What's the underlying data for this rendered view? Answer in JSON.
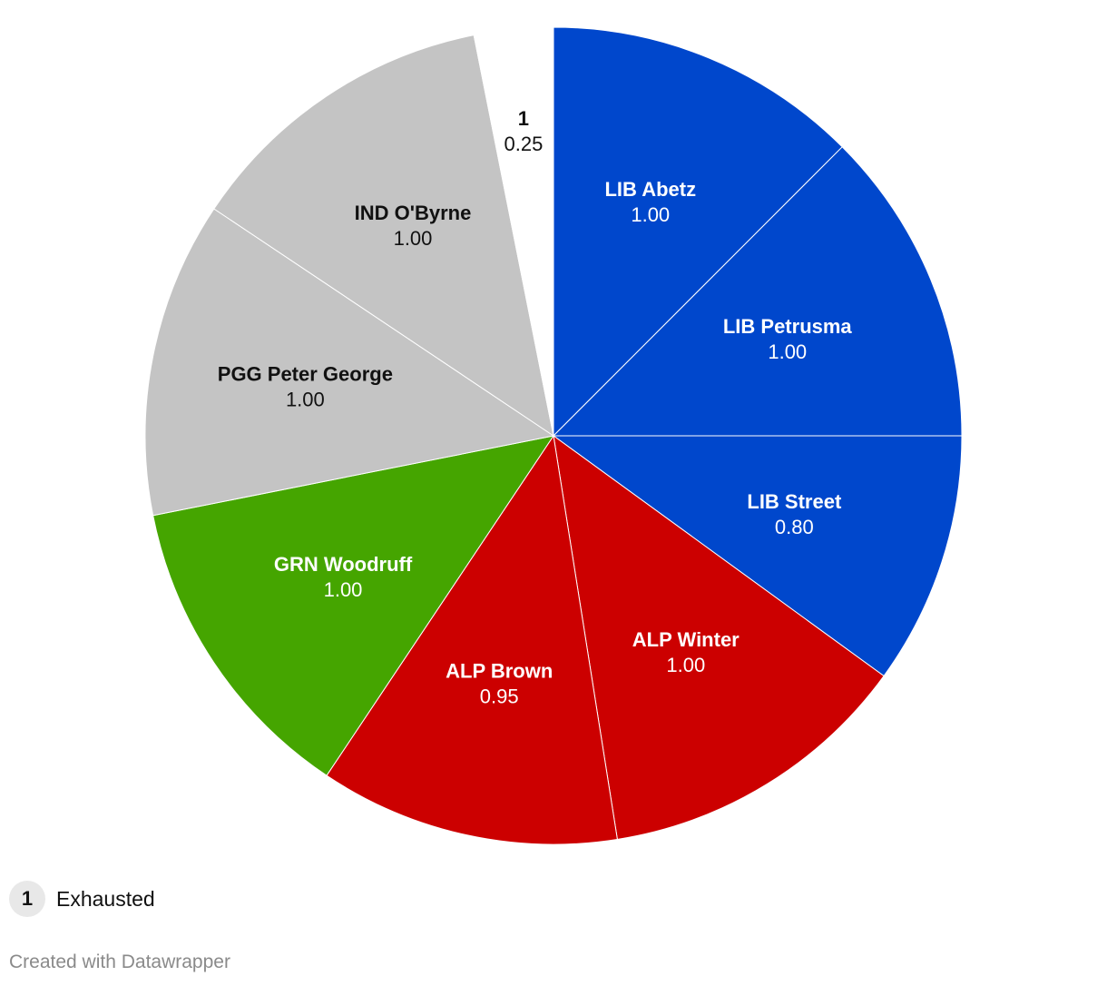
{
  "chart_data": {
    "type": "pie",
    "slices": [
      {
        "label": "LIB Abetz",
        "value": 1.0,
        "display": "1.00",
        "color": "#0047cc",
        "text_color": "#ffffff"
      },
      {
        "label": "LIB Petrusma",
        "value": 1.0,
        "display": "1.00",
        "color": "#0047cc",
        "text_color": "#ffffff"
      },
      {
        "label": "LIB Street",
        "value": 0.8,
        "display": "0.80",
        "color": "#0047cc",
        "text_color": "#ffffff"
      },
      {
        "label": "ALP Winter",
        "value": 1.0,
        "display": "1.00",
        "color": "#cc0000",
        "text_color": "#ffffff"
      },
      {
        "label": "ALP Brown",
        "value": 0.95,
        "display": "0.95",
        "color": "#cc0000",
        "text_color": "#ffffff"
      },
      {
        "label": "GRN Woodruff",
        "value": 1.0,
        "display": "1.00",
        "color": "#45a500",
        "text_color": "#ffffff"
      },
      {
        "label": "PGG Peter George",
        "value": 1.0,
        "display": "1.00",
        "color": "#c4c4c4",
        "text_color": "#111111"
      },
      {
        "label": "IND O'Byrne",
        "value": 1.0,
        "display": "1.00",
        "color": "#c4c4c4",
        "text_color": "#111111"
      },
      {
        "label": "1",
        "value": 0.25,
        "display": "0.25",
        "color": "#ffffff",
        "text_color": "#111111"
      }
    ],
    "legend": {
      "marker": "1",
      "label": "Exhausted",
      "placement": "bottom-left"
    }
  },
  "footer": "Created with Datawrapper"
}
